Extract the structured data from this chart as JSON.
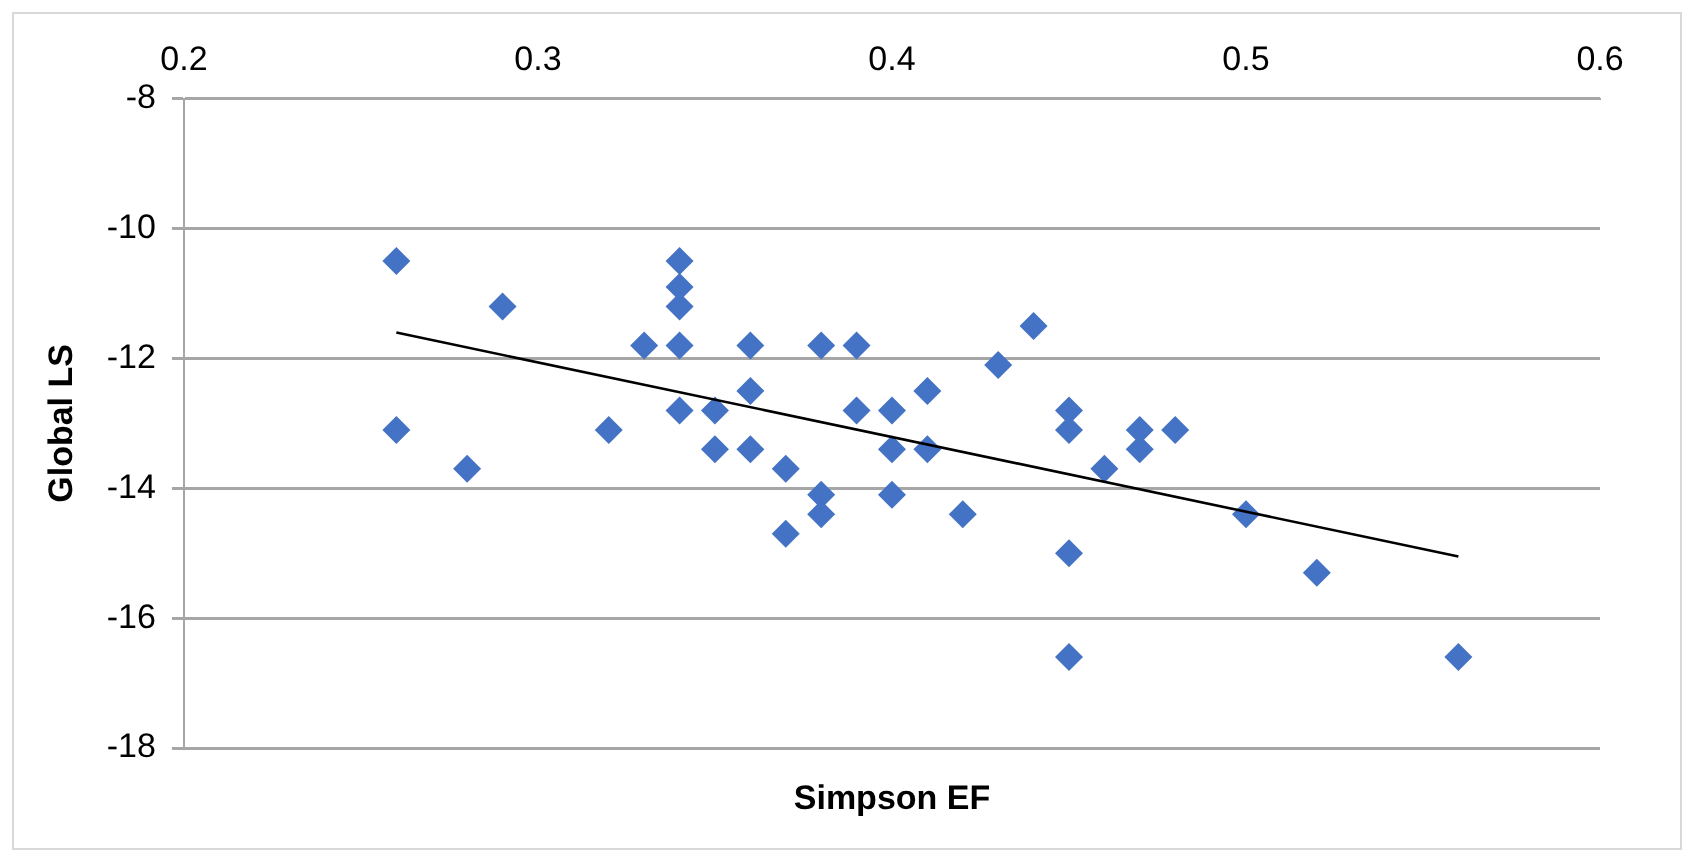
{
  "chart_data": {
    "type": "scatter",
    "xlabel": "Simpson EF",
    "ylabel": "Global LS",
    "xlim": [
      0.2,
      0.6
    ],
    "xticks": [
      0.2,
      0.3,
      0.4,
      0.5,
      0.6
    ],
    "ylim": [
      -18,
      -8
    ],
    "yticks": [
      -18,
      -16,
      -14,
      -12,
      -10,
      -8
    ],
    "grid": "y",
    "legend": false,
    "marker": "diamond",
    "series": [
      {
        "color": "#4472c4",
        "x": [
          0.26,
          0.26,
          0.28,
          0.29,
          0.32,
          0.33,
          0.34,
          0.34,
          0.34,
          0.34,
          0.34,
          0.35,
          0.35,
          0.36,
          0.36,
          0.36,
          0.37,
          0.37,
          0.38,
          0.38,
          0.38,
          0.39,
          0.39,
          0.4,
          0.4,
          0.4,
          0.41,
          0.41,
          0.42,
          0.43,
          0.44,
          0.45,
          0.45,
          0.45,
          0.45,
          0.46,
          0.47,
          0.47,
          0.48,
          0.5,
          0.52,
          0.56
        ],
        "values": [
          -10.5,
          -13.1,
          -13.7,
          -11.2,
          -13.1,
          -11.8,
          -10.5,
          -10.9,
          -11.2,
          -11.8,
          -12.8,
          -12.8,
          -13.4,
          -11.8,
          -12.5,
          -13.4,
          -13.7,
          -14.7,
          -11.8,
          -14.1,
          -14.4,
          -11.8,
          -12.8,
          -12.8,
          -13.4,
          -14.1,
          -12.5,
          -13.4,
          -14.4,
          -12.1,
          -11.5,
          -12.8,
          -13.1,
          -15.0,
          -16.6,
          -13.7,
          -13.1,
          -13.4,
          -13.1,
          -14.4,
          -15.3,
          -16.6
        ]
      },
      {
        "type": "line",
        "color": "#000000",
        "marker": "none",
        "x": [
          0.26,
          0.56
        ],
        "values": [
          -11.6,
          -15.05
        ]
      }
    ]
  }
}
